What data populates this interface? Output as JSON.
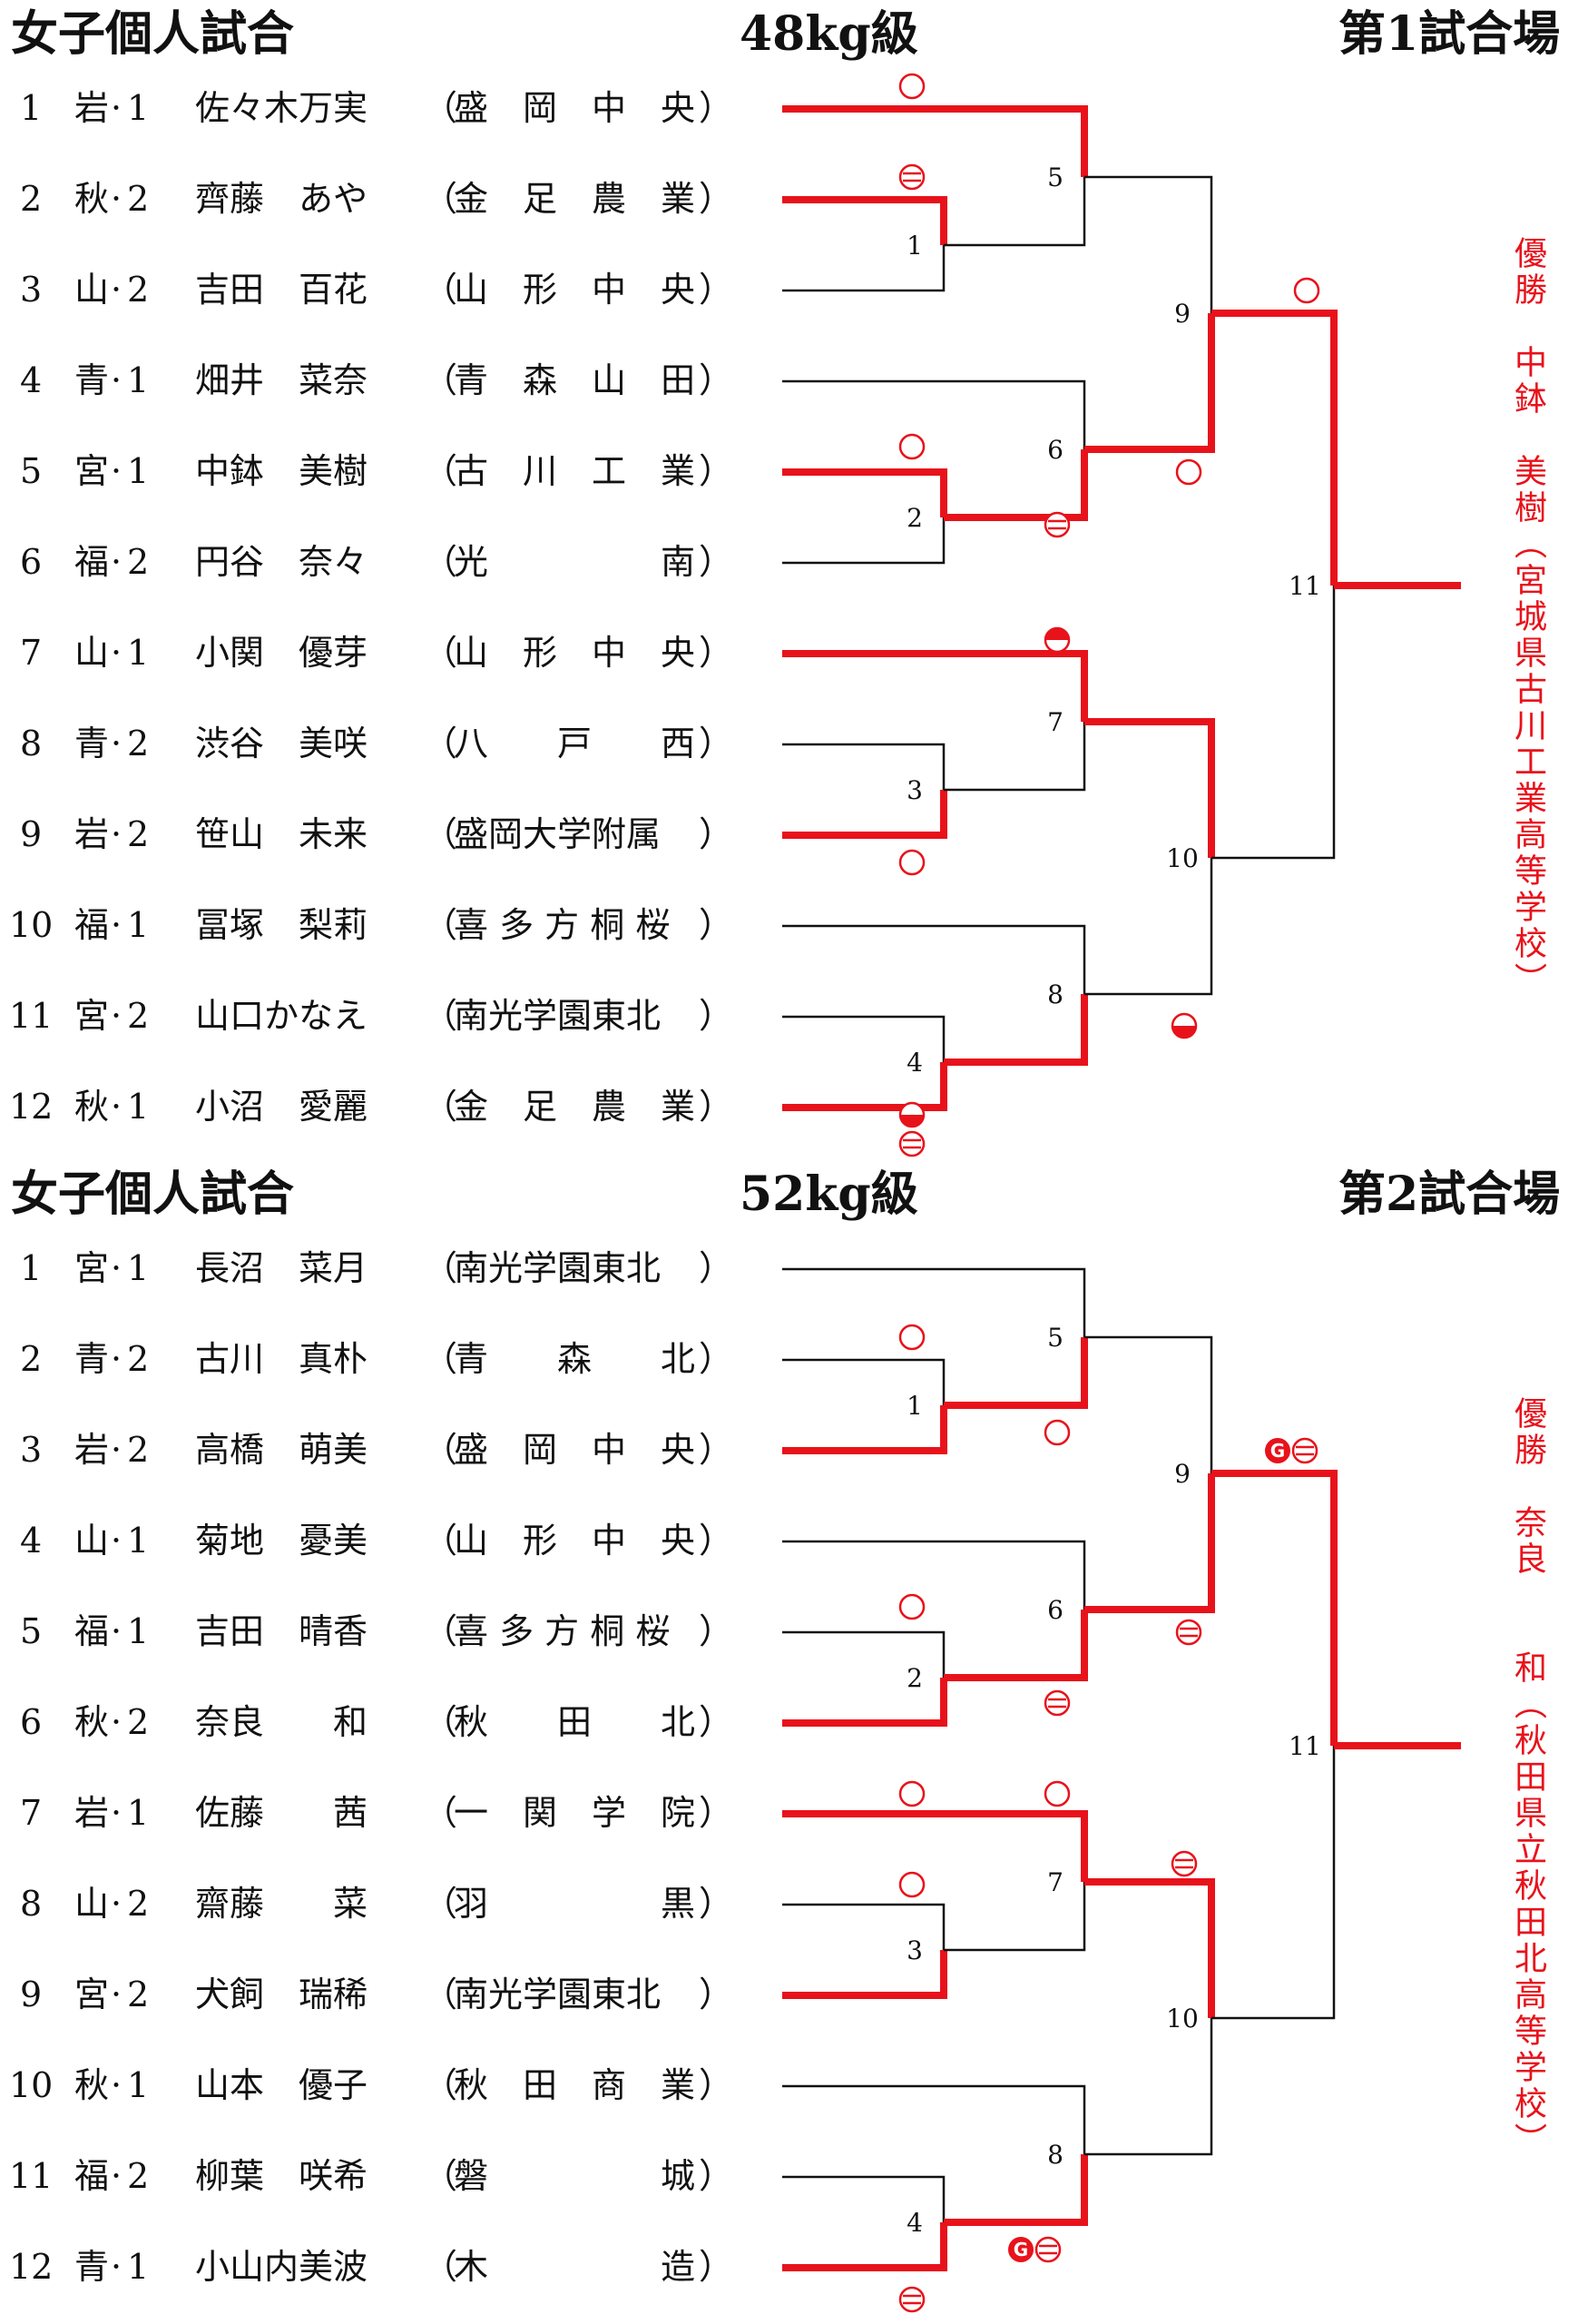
{
  "colors": {
    "winner": "#e8121b",
    "line": "#111111"
  },
  "brackets": [
    {
      "title": "女子個人試合",
      "weight_class": "48kg級",
      "venue": "第1試合場",
      "players": [
        {
          "seed": "1",
          "pref": "岩",
          "grade": "1",
          "name": "佐々木万実",
          "school": "盛　岡　中　央"
        },
        {
          "seed": "2",
          "pref": "秋",
          "grade": "2",
          "name": "齊藤　あや",
          "school": "金　足　農　業"
        },
        {
          "seed": "3",
          "pref": "山",
          "grade": "2",
          "name": "吉田　百花",
          "school": "山　形　中　央"
        },
        {
          "seed": "4",
          "pref": "青",
          "grade": "1",
          "name": "畑井　菜奈",
          "school": "青　森　山　田"
        },
        {
          "seed": "5",
          "pref": "宮",
          "grade": "1",
          "name": "中鉢　美樹",
          "school": "古　川　工　業"
        },
        {
          "seed": "6",
          "pref": "福",
          "grade": "2",
          "name": "円谷　奈々",
          "school": "光　　　　　南"
        },
        {
          "seed": "7",
          "pref": "山",
          "grade": "1",
          "name": "小関　優芽",
          "school": "山　形　中　央"
        },
        {
          "seed": "8",
          "pref": "青",
          "grade": "2",
          "name": "渋谷　美咲",
          "school": "八　　戸　　西"
        },
        {
          "seed": "9",
          "pref": "岩",
          "grade": "2",
          "name": "笹山　未来",
          "school": "盛岡大学附属"
        },
        {
          "seed": "10",
          "pref": "福",
          "grade": "1",
          "name": "冨塚　梨莉",
          "school": "喜 多 方 桐 桜"
        },
        {
          "seed": "11",
          "pref": "宮",
          "grade": "2",
          "name": "山口かなえ",
          "school": "南光学園東北"
        },
        {
          "seed": "12",
          "pref": "秋",
          "grade": "1",
          "name": "小沼　愛麗",
          "school": "金　足　農　業"
        }
      ],
      "matches": [
        "1",
        "2",
        "3",
        "4",
        "5",
        "6",
        "7",
        "8",
        "9",
        "10",
        "11"
      ],
      "winner_vertical": "優勝　中鉢　美樹（宮城県古川工業高等学校）"
    },
    {
      "title": "女子個人試合",
      "weight_class": "52kg級",
      "venue": "第2試合場",
      "players": [
        {
          "seed": "1",
          "pref": "宮",
          "grade": "1",
          "name": "長沼　菜月",
          "school": "南光学園東北"
        },
        {
          "seed": "2",
          "pref": "青",
          "grade": "2",
          "name": "古川　真朴",
          "school": "青　　森　　北"
        },
        {
          "seed": "3",
          "pref": "岩",
          "grade": "2",
          "name": "高橋　萌美",
          "school": "盛　岡　中　央"
        },
        {
          "seed": "4",
          "pref": "山",
          "grade": "1",
          "name": "菊地　憂美",
          "school": "山　形　中　央"
        },
        {
          "seed": "5",
          "pref": "福",
          "grade": "1",
          "name": "吉田　晴香",
          "school": "喜 多 方 桐 桜"
        },
        {
          "seed": "6",
          "pref": "秋",
          "grade": "2",
          "name": "奈良　　和",
          "school": "秋　　田　　北"
        },
        {
          "seed": "7",
          "pref": "岩",
          "grade": "1",
          "name": "佐藤　　茜",
          "school": "一　関　学　院"
        },
        {
          "seed": "8",
          "pref": "山",
          "grade": "2",
          "name": "齋藤　　菜",
          "school": "羽　　　　　黒"
        },
        {
          "seed": "9",
          "pref": "宮",
          "grade": "2",
          "name": "犬飼　瑞稀",
          "school": "南光学園東北"
        },
        {
          "seed": "10",
          "pref": "秋",
          "grade": "1",
          "name": "山本　優子",
          "school": "秋　田　商　業"
        },
        {
          "seed": "11",
          "pref": "福",
          "grade": "2",
          "name": "柳葉　咲希",
          "school": "磐　　　　　城"
        },
        {
          "seed": "12",
          "pref": "青",
          "grade": "1",
          "name": "小山内美波",
          "school": "木　　　　　造"
        }
      ],
      "matches": [
        "1",
        "2",
        "3",
        "4",
        "5",
        "6",
        "7",
        "8",
        "9",
        "10",
        "11"
      ],
      "winner_vertical": "優勝　奈良　　和（秋田県立秋田北高等学校）"
    }
  ]
}
